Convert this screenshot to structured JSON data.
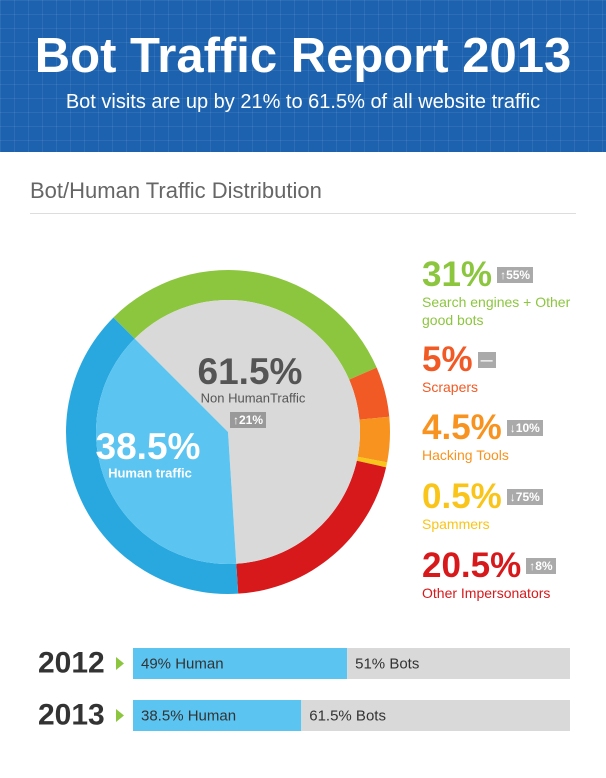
{
  "header": {
    "title": "Bot Traffic Report 2013",
    "subtitle": "Bot visits are up by 21% to 61.5% of all website traffic"
  },
  "chart_data": [
    {
      "type": "donut",
      "title": "Bot/Human Traffic Distribution",
      "categories": [
        "Search engines + Other good bots",
        "Scrapers",
        "Hacking Tools",
        "Spammers",
        "Other Impersonators"
      ],
      "values": [
        31,
        5,
        4.5,
        0.5,
        20.5
      ],
      "value_labels": [
        "31%",
        "5%",
        "4.5%",
        "0.5%",
        "20.5%"
      ],
      "changes": [
        "↑55%",
        "—",
        "↓10%",
        "↓75%",
        "↑8%"
      ],
      "colors": [
        "#8cc63f",
        "#f15a24",
        "#f7931e",
        "#f9c51a",
        "#d7191c"
      ],
      "inner": {
        "categories": [
          "Non HumanTraffic",
          "Human traffic"
        ],
        "values": [
          61.5,
          38.5
        ],
        "value_labels": [
          "61.5%",
          "38.5%"
        ],
        "colors": [
          "#d9d9d9",
          "#5bc4f1"
        ],
        "ring_color": "#29a8e0",
        "change": "↑21%"
      }
    },
    {
      "type": "stacked-bar",
      "categories": [
        "2012",
        "2013"
      ],
      "xlim": [
        0,
        100
      ],
      "series": [
        {
          "color": "#5bc4f1",
          "values": [
            49,
            38.5
          ],
          "value_labels": [
            "49% Human",
            "38.5% Human"
          ]
        },
        {
          "color": "#d9d9d9",
          "values": [
            51,
            61.5
          ],
          "value_labels": [
            "51% Bots",
            "61.5% Bots"
          ]
        }
      ]
    }
  ]
}
